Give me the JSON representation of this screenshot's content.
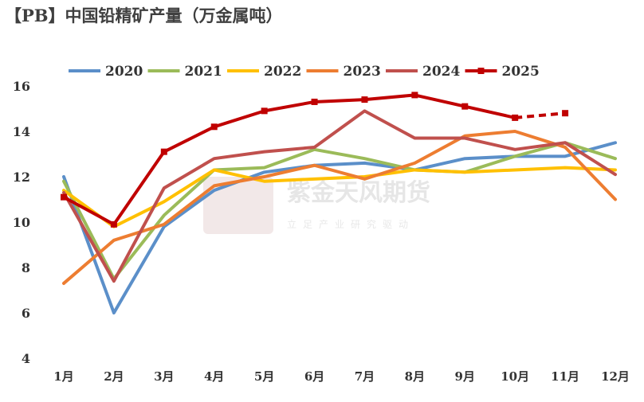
{
  "chart_data": {
    "type": "line",
    "title": "【PB】中国铅精矿产量（万金属吨）",
    "categories": [
      "1月",
      "2月",
      "3月",
      "4月",
      "5月",
      "6月",
      "7月",
      "8月",
      "9月",
      "10月",
      "11月",
      "12月"
    ],
    "ylim": [
      4,
      16
    ],
    "yticks": [
      4,
      6,
      8,
      10,
      12,
      14,
      16
    ],
    "grid": false,
    "legend_position": "top",
    "series": [
      {
        "name": "2020",
        "color": "#5B8FC9",
        "values": [
          12.0,
          6.0,
          9.8,
          11.4,
          12.2,
          12.5,
          12.6,
          12.3,
          12.8,
          12.9,
          12.9,
          13.5
        ]
      },
      {
        "name": "2021",
        "color": "#9BBB59",
        "values": [
          11.8,
          7.5,
          10.3,
          12.3,
          12.4,
          13.2,
          12.8,
          12.3,
          12.2,
          12.9,
          13.5,
          12.8
        ]
      },
      {
        "name": "2022",
        "color": "#FFC000",
        "values": [
          11.4,
          9.8,
          10.9,
          12.3,
          11.8,
          11.9,
          12.0,
          12.3,
          12.2,
          12.3,
          12.4,
          12.3
        ]
      },
      {
        "name": "2023",
        "color": "#ED7D31",
        "values": [
          7.3,
          9.2,
          9.9,
          11.6,
          12.0,
          12.5,
          11.9,
          12.6,
          13.8,
          14.0,
          13.3,
          11.0
        ]
      },
      {
        "name": "2024",
        "color": "#C0504D",
        "values": [
          11.3,
          7.4,
          11.5,
          12.8,
          13.1,
          13.3,
          14.9,
          13.7,
          13.7,
          13.2,
          13.5,
          12.1
        ]
      },
      {
        "name": "2025",
        "color": "#C00000",
        "values": [
          11.1,
          9.9,
          13.1,
          14.2,
          14.9,
          15.3,
          15.4,
          15.6,
          15.1,
          14.6,
          14.8,
          null
        ],
        "dashed_from_index": 9
      }
    ]
  },
  "watermark": {
    "brand": "紫金天风期货",
    "tagline": "立足产业研究驱动",
    "logo_text": "紫金天风"
  }
}
